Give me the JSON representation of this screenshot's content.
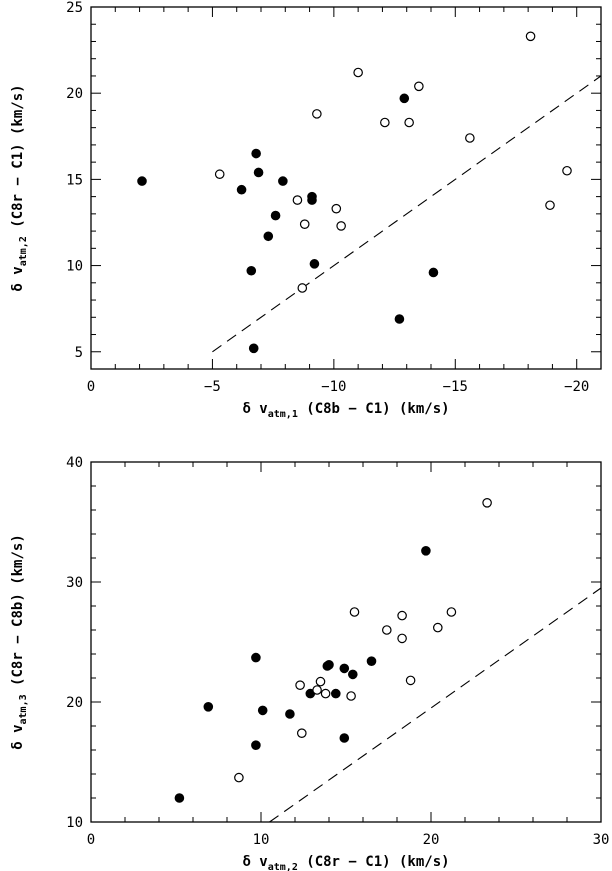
{
  "chart_data": [
    {
      "type": "scatter",
      "title": "",
      "xlabel": {
        "prefix": "δ v",
        "sub": "atm,1",
        "suffix": " (C8b − C1) (km/s)"
      },
      "ylabel": {
        "prefix": "δ v",
        "sub": "atm,2",
        "suffix": " (C8r − C1) (km/s)"
      },
      "xlim": [
        0,
        -21
      ],
      "ylim": [
        4,
        25
      ],
      "x_reversed": true,
      "xticks": [
        0,
        -5,
        -10,
        -15,
        -20
      ],
      "xtick_labels": [
        "0",
        "−5",
        "−10",
        "−15",
        "−20"
      ],
      "yticks": [
        5,
        10,
        15,
        20,
        25
      ],
      "ytick_labels": [
        "5",
        "10",
        "15",
        "20",
        "25"
      ],
      "grid": false,
      "reference_line": {
        "style": "dashed",
        "points": [
          [
            -5,
            5
          ],
          [
            -21,
            21
          ]
        ]
      },
      "series": [
        {
          "marker": "filled-circle",
          "points": [
            [
              -2.1,
              14.9
            ],
            [
              -6.2,
              14.4
            ],
            [
              -6.8,
              16.5
            ],
            [
              -6.9,
              15.4
            ],
            [
              -6.6,
              9.7
            ],
            [
              -6.7,
              5.2
            ],
            [
              -7.3,
              11.7
            ],
            [
              -7.6,
              12.9
            ],
            [
              -7.9,
              14.9
            ],
            [
              -9.1,
              14.0
            ],
            [
              -9.1,
              13.8
            ],
            [
              -9.2,
              10.1
            ],
            [
              -12.7,
              6.9
            ],
            [
              -12.9,
              19.7
            ],
            [
              -14.1,
              9.6
            ]
          ]
        },
        {
          "marker": "open-circle",
          "points": [
            [
              -5.3,
              15.3
            ],
            [
              -8.5,
              13.8
            ],
            [
              -8.8,
              12.4
            ],
            [
              -8.7,
              8.7
            ],
            [
              -9.3,
              18.8
            ],
            [
              -10.1,
              13.3
            ],
            [
              -10.3,
              12.3
            ],
            [
              -11.0,
              21.2
            ],
            [
              -12.1,
              18.3
            ],
            [
              -13.1,
              18.3
            ],
            [
              -13.5,
              20.4
            ],
            [
              -15.6,
              17.4
            ],
            [
              -18.1,
              23.3
            ],
            [
              -18.9,
              13.5
            ],
            [
              -19.6,
              15.5
            ]
          ]
        }
      ]
    },
    {
      "type": "scatter",
      "title": "",
      "xlabel": {
        "prefix": "δ v",
        "sub": "atm,2",
        "suffix": " (C8r − C1) (km/s)"
      },
      "ylabel": {
        "prefix": "δ v",
        "sub": "atm,3",
        "suffix": " (C8r − C8b) (km/s)"
      },
      "xlim": [
        0,
        30
      ],
      "ylim": [
        10,
        40
      ],
      "x_reversed": false,
      "xticks": [
        0,
        10,
        20,
        30
      ],
      "xtick_labels": [
        "0",
        "10",
        "20",
        "30"
      ],
      "yticks": [
        10,
        20,
        30,
        40
      ],
      "ytick_labels": [
        "10",
        "20",
        "30",
        "40"
      ],
      "grid": false,
      "reference_line": {
        "style": "dashed",
        "points": [
          [
            10.5,
            10
          ],
          [
            30,
            29.5
          ]
        ]
      },
      "series": [
        {
          "marker": "filled-circle",
          "points": [
            [
              5.2,
              12.0
            ],
            [
              6.9,
              19.6
            ],
            [
              9.7,
              23.7
            ],
            [
              9.7,
              16.4
            ],
            [
              10.1,
              19.3
            ],
            [
              11.7,
              19.0
            ],
            [
              12.9,
              20.7
            ],
            [
              13.9,
              23.0
            ],
            [
              14.0,
              23.1
            ],
            [
              14.4,
              20.7
            ],
            [
              14.9,
              22.8
            ],
            [
              14.9,
              17.0
            ],
            [
              15.4,
              22.3
            ],
            [
              16.5,
              23.4
            ],
            [
              19.7,
              32.6
            ]
          ]
        },
        {
          "marker": "open-circle",
          "points": [
            [
              8.7,
              13.7
            ],
            [
              12.3,
              21.4
            ],
            [
              12.4,
              17.4
            ],
            [
              13.3,
              21.0
            ],
            [
              13.5,
              21.7
            ],
            [
              13.8,
              20.7
            ],
            [
              15.3,
              20.5
            ],
            [
              15.5,
              27.5
            ],
            [
              17.4,
              26.0
            ],
            [
              18.3,
              27.2
            ],
            [
              18.3,
              25.3
            ],
            [
              18.8,
              21.8
            ],
            [
              20.4,
              26.2
            ],
            [
              21.2,
              27.5
            ],
            [
              23.3,
              36.6
            ]
          ]
        }
      ]
    }
  ]
}
